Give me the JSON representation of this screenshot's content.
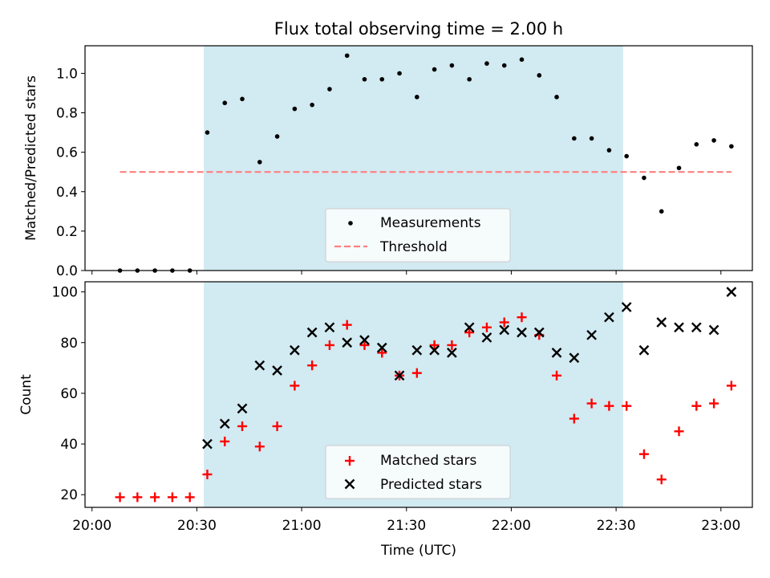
{
  "title": "Flux total observing time = 2.00 h",
  "colors": {
    "shade": "#add8e6",
    "measurement": "#000000",
    "threshold": "#ff7f7f",
    "matched": "#ff0000",
    "predicted": "#000000"
  },
  "chart_data": [
    {
      "type": "scatter",
      "panel": "top",
      "ylabel": "Matched/Predicted stars",
      "xlabel": "",
      "ylim": [
        0,
        1.14
      ],
      "yticks": [
        "0.0",
        "0.2",
        "0.4",
        "0.6",
        "0.8",
        "1.0"
      ],
      "xlim": [
        "19:58",
        "23:09"
      ],
      "shaded_interval": [
        "20:32",
        "22:32"
      ],
      "legend": {
        "placement": "lower-center",
        "entries": [
          "Measurements",
          "Threshold"
        ]
      },
      "series": [
        {
          "name": "Measurements",
          "marker": "dot",
          "x": [
            "20:08",
            "20:13",
            "20:18",
            "20:23",
            "20:28",
            "20:33",
            "20:38",
            "20:43",
            "20:48",
            "20:53",
            "20:58",
            "21:03",
            "21:08",
            "21:13",
            "21:18",
            "21:23",
            "21:28",
            "21:33",
            "21:38",
            "21:43",
            "21:48",
            "21:53",
            "21:58",
            "22:03",
            "22:08",
            "22:13",
            "22:18",
            "22:23",
            "22:28",
            "22:33",
            "22:38",
            "22:43",
            "22:48",
            "22:53",
            "22:58",
            "23:03"
          ],
          "y": [
            0.0,
            0.0,
            0.0,
            0.0,
            0.0,
            0.7,
            0.85,
            0.87,
            0.55,
            0.68,
            0.82,
            0.84,
            0.92,
            1.09,
            0.97,
            0.97,
            1.0,
            0.88,
            1.02,
            1.04,
            0.97,
            1.05,
            1.04,
            1.07,
            0.99,
            0.88,
            0.67,
            0.67,
            0.61,
            0.58,
            0.47,
            0.3,
            0.52,
            0.64,
            0.66,
            0.63
          ]
        },
        {
          "name": "Threshold",
          "marker": "dashed-line",
          "x": [
            "20:08",
            "23:03"
          ],
          "y": [
            0.5,
            0.5
          ]
        }
      ]
    },
    {
      "type": "scatter",
      "panel": "bottom",
      "ylabel": "Count",
      "xlabel": "Time (UTC)",
      "ylim": [
        15,
        104
      ],
      "yticks": [
        "20",
        "40",
        "60",
        "80",
        "100"
      ],
      "xlim": [
        "19:58",
        "23:09"
      ],
      "xticks": [
        "20:00",
        "20:30",
        "21:00",
        "21:30",
        "22:00",
        "22:30",
        "23:00"
      ],
      "shaded_interval": [
        "20:32",
        "22:32"
      ],
      "legend": {
        "placement": "lower-center",
        "entries": [
          "Matched stars",
          "Predicted stars"
        ]
      },
      "series": [
        {
          "name": "Matched stars",
          "marker": "plus",
          "x": [
            "20:08",
            "20:13",
            "20:18",
            "20:23",
            "20:28",
            "20:33",
            "20:38",
            "20:43",
            "20:48",
            "20:53",
            "20:58",
            "21:03",
            "21:08",
            "21:13",
            "21:18",
            "21:23",
            "21:28",
            "21:33",
            "21:38",
            "21:43",
            "21:48",
            "21:53",
            "21:58",
            "22:03",
            "22:08",
            "22:13",
            "22:18",
            "22:23",
            "22:28",
            "22:33",
            "22:38",
            "22:43",
            "22:48",
            "22:53",
            "22:58",
            "23:03"
          ],
          "y": [
            19,
            19,
            19,
            19,
            19,
            28,
            41,
            47,
            39,
            47,
            63,
            71,
            79,
            87,
            79,
            76,
            67,
            68,
            79,
            79,
            84,
            86,
            88,
            90,
            83,
            67,
            50,
            56,
            55,
            55,
            36,
            26,
            45,
            55,
            56,
            63
          ]
        },
        {
          "name": "Predicted stars",
          "marker": "x",
          "x": [
            "20:33",
            "20:38",
            "20:43",
            "20:48",
            "20:53",
            "20:58",
            "21:03",
            "21:08",
            "21:13",
            "21:18",
            "21:23",
            "21:28",
            "21:33",
            "21:38",
            "21:43",
            "21:48",
            "21:53",
            "21:58",
            "22:03",
            "22:08",
            "22:13",
            "22:18",
            "22:23",
            "22:28",
            "22:33",
            "22:38",
            "22:43",
            "22:48",
            "22:53",
            "22:58",
            "23:03"
          ],
          "y": [
            40,
            48,
            54,
            71,
            69,
            77,
            84,
            86,
            80,
            81,
            78,
            67,
            77,
            77,
            76,
            86,
            82,
            85,
            84,
            84,
            76,
            74,
            83,
            90,
            94,
            77,
            88,
            86,
            86,
            85,
            100
          ]
        }
      ]
    }
  ]
}
